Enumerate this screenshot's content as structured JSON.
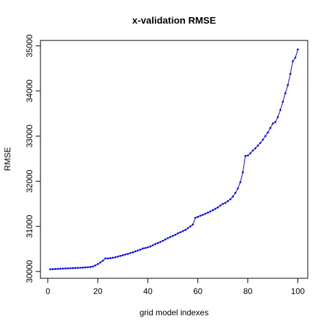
{
  "chart_data": {
    "type": "line",
    "title": "x-validation RMSE",
    "x_label": "grid model indexes",
    "y_label": "RMSE",
    "x": [
      1,
      2,
      3,
      4,
      5,
      6,
      7,
      8,
      9,
      10,
      11,
      12,
      13,
      14,
      15,
      16,
      17,
      18,
      19,
      20,
      21,
      22,
      23,
      24,
      25,
      26,
      27,
      28,
      29,
      30,
      31,
      32,
      33,
      34,
      35,
      36,
      37,
      38,
      39,
      40,
      41,
      42,
      43,
      44,
      45,
      46,
      47,
      48,
      49,
      50,
      51,
      52,
      53,
      54,
      55,
      56,
      57,
      58,
      59,
      60,
      61,
      62,
      63,
      64,
      65,
      66,
      67,
      68,
      69,
      70,
      71,
      72,
      73,
      74,
      75,
      76,
      77,
      78,
      79,
      80,
      81,
      82,
      83,
      84,
      85,
      86,
      87,
      88,
      89,
      90,
      91,
      92,
      93,
      94,
      95,
      96,
      97,
      98,
      99,
      100
    ],
    "series": [
      {
        "name": "RMSE",
        "color": "#0000ff",
        "values": [
          30050,
          30052,
          30055,
          30058,
          30062,
          30065,
          30068,
          30070,
          30072,
          30075,
          30078,
          30080,
          30083,
          30086,
          30090,
          30095,
          30100,
          30110,
          30135,
          30165,
          30200,
          30240,
          30290,
          30290,
          30295,
          30305,
          30315,
          30330,
          30345,
          30360,
          30375,
          30390,
          30410,
          30425,
          30445,
          30465,
          30485,
          30510,
          30520,
          30535,
          30555,
          30580,
          30610,
          30630,
          30655,
          30680,
          30710,
          30740,
          30765,
          30790,
          30815,
          30845,
          30870,
          30895,
          30920,
          30960,
          31000,
          31040,
          31190,
          31210,
          31235,
          31255,
          31280,
          31305,
          31330,
          31360,
          31390,
          31420,
          31460,
          31500,
          31520,
          31560,
          31600,
          31660,
          31740,
          31840,
          31980,
          32200,
          32560,
          32570,
          32620,
          32680,
          32730,
          32790,
          32850,
          32920,
          33000,
          33080,
          33180,
          33280,
          33310,
          33420,
          33580,
          33760,
          33950,
          34130,
          34380,
          34660,
          34740,
          34920
        ]
      }
    ],
    "xlim": [
      -2.96,
      103.96
    ],
    "xticks": [
      0,
      20,
      40,
      60,
      80,
      100
    ],
    "ylim": [
      29850,
      35120
    ],
    "yticks": [
      30000,
      31000,
      32000,
      33000,
      34000,
      35000
    ],
    "grid": false
  }
}
